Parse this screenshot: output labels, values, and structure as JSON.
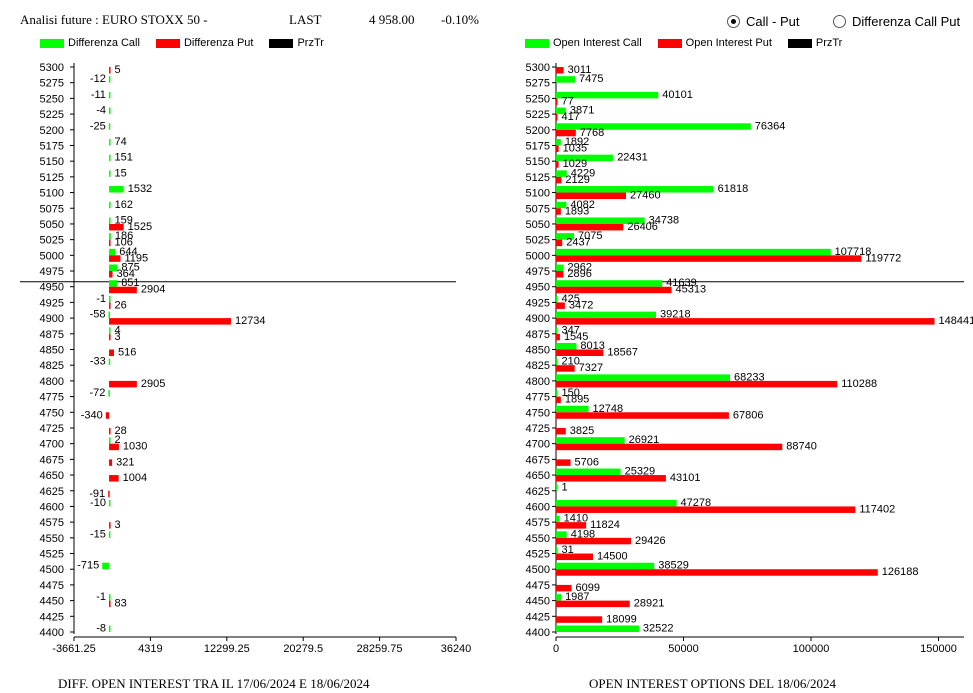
{
  "header": {
    "title": "Analisi future : EURO STOXX 50 -",
    "last_label": "LAST",
    "last_value": "4 958.00",
    "change": "-0.10%"
  },
  "options": {
    "call_put": "Call - Put",
    "diff_call_put": "Differenza Call Put",
    "selected": "call_put"
  },
  "colors": {
    "call": "#00ff00",
    "put": "#ff0000",
    "price": "#000000"
  },
  "chart_data": [
    {
      "type": "bar",
      "orientation": "horizontal",
      "xlabel": "DIFF. OPEN INTEREST TRA IL 17/06/2024 E 18/06/2024",
      "legend": [
        "Differenza Call",
        "Differenza Put",
        "PrzTr"
      ],
      "legend_position": "top-left",
      "xlim": [
        -3661.25,
        36240
      ],
      "xticks": [
        "-3661.25",
        "4319",
        "12299.25",
        "20279.5",
        "28259.75",
        "36240"
      ],
      "price_line": 4958,
      "strikes": [
        5300,
        5275,
        5250,
        5225,
        5200,
        5175,
        5150,
        5125,
        5100,
        5075,
        5050,
        5025,
        5000,
        4975,
        4950,
        4925,
        4900,
        4875,
        4850,
        4825,
        4800,
        4775,
        4750,
        4725,
        4700,
        4675,
        4650,
        4625,
        4600,
        4575,
        4550,
        4525,
        4500,
        4475,
        4450,
        4425,
        4400
      ],
      "series": [
        {
          "name": "Differenza Call",
          "values": [
            null,
            -12,
            -11,
            -4,
            -25,
            74,
            151,
            15,
            1532,
            162,
            159,
            186,
            644,
            875,
            851,
            -1,
            -58,
            4,
            null,
            -33,
            null,
            -72,
            null,
            null,
            2,
            null,
            null,
            null,
            -10,
            null,
            -15,
            null,
            -715,
            null,
            -1,
            null,
            -8
          ]
        },
        {
          "name": "Differenza Put",
          "values": [
            5,
            null,
            null,
            null,
            null,
            null,
            null,
            null,
            null,
            null,
            1525,
            106,
            1195,
            364,
            2904,
            26,
            12734,
            3,
            516,
            null,
            2905,
            null,
            -340,
            28,
            1030,
            321,
            1004,
            -91,
            null,
            3,
            null,
            null,
            null,
            null,
            83,
            null,
            null
          ]
        }
      ]
    },
    {
      "type": "bar",
      "orientation": "horizontal",
      "xlabel": "OPEN INTEREST OPTIONS DEL 18/06/2024",
      "legend": [
        "Open Interest Call",
        "Open Interest Put",
        "PrzTr"
      ],
      "legend_position": "top-left",
      "xlim": [
        0,
        160000
      ],
      "xticks": [
        "0",
        "50000",
        "100000",
        "150000"
      ],
      "price_line": 4958,
      "strikes": [
        5300,
        5275,
        5250,
        5225,
        5200,
        5175,
        5150,
        5125,
        5100,
        5075,
        5050,
        5025,
        5000,
        4975,
        4950,
        4925,
        4900,
        4875,
        4850,
        4825,
        4800,
        4775,
        4750,
        4725,
        4700,
        4675,
        4650,
        4625,
        4600,
        4575,
        4550,
        4525,
        4500,
        4475,
        4450,
        4425,
        4400
      ],
      "series": [
        {
          "name": "Open Interest Call",
          "values": [
            null,
            7475,
            40101,
            3871,
            76364,
            1892,
            22431,
            4229,
            61818,
            4082,
            34738,
            7075,
            107718,
            2962,
            41639,
            425,
            39218,
            347,
            8013,
            210,
            68233,
            150,
            12748,
            null,
            26921,
            null,
            25329,
            1,
            47278,
            1410,
            4198,
            31,
            38529,
            null,
            1987,
            null,
            32522
          ]
        },
        {
          "name": "Open Interest Put",
          "values": [
            3011,
            null,
            77,
            417,
            7768,
            1035,
            1029,
            2129,
            27460,
            1893,
            26406,
            2437,
            119772,
            2896,
            45313,
            3472,
            148441,
            1545,
            18567,
            7327,
            110288,
            1895,
            67806,
            3825,
            88740,
            5706,
            43101,
            null,
            117402,
            11824,
            29426,
            14500,
            126188,
            6099,
            28921,
            18099,
            null
          ]
        }
      ]
    }
  ]
}
